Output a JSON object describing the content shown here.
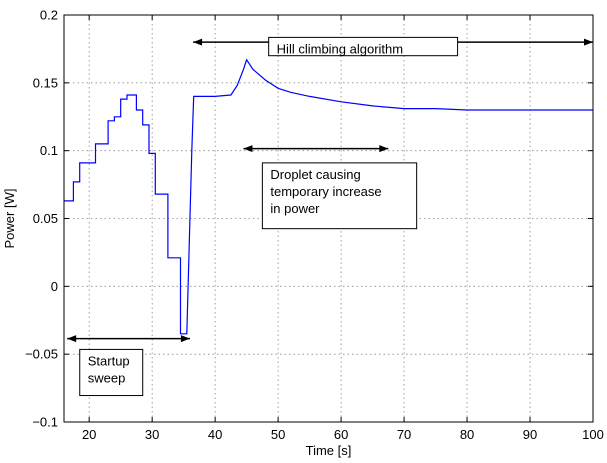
{
  "chart_data": {
    "type": "line",
    "xlabel": "Time [s]",
    "ylabel": "Power [W]",
    "xlim": [
      16,
      100
    ],
    "ylim": [
      -0.1,
      0.2
    ],
    "xticks": [
      20,
      30,
      40,
      50,
      60,
      70,
      80,
      90,
      100
    ],
    "yticks": [
      -0.1,
      -0.05,
      0,
      0.05,
      0.1,
      0.15,
      0.2
    ],
    "ytick_labels": [
      "−0.1",
      "−0.05",
      "0",
      "0.05",
      "0.1",
      "0.15",
      "0.2"
    ],
    "grid": true,
    "series_color": "#0000ff",
    "series": [
      {
        "x": [
          16,
          17.5,
          17.5,
          18.5,
          18.5,
          19.5,
          19.5,
          21,
          21,
          22,
          22,
          23,
          23,
          24,
          24,
          25,
          25,
          26,
          26,
          27.5,
          27.5,
          28.5,
          28.5,
          29.5,
          29.5,
          30.5,
          30.5,
          31.5,
          31.5,
          32.5,
          32.5,
          33.5,
          33.5,
          34.5,
          34.5,
          35.5,
          36.3,
          36.6,
          40,
          42.5,
          43.5,
          44.5,
          45,
          46,
          48,
          50,
          52,
          55,
          60,
          65,
          70,
          75,
          80,
          85,
          90,
          95,
          100
        ],
        "y": [
          0.063,
          0.063,
          0.077,
          0.077,
          0.091,
          0.091,
          0.091,
          0.091,
          0.105,
          0.105,
          0.105,
          0.105,
          0.122,
          0.122,
          0.125,
          0.125,
          0.138,
          0.138,
          0.141,
          0.141,
          0.13,
          0.13,
          0.119,
          0.119,
          0.098,
          0.098,
          0.068,
          0.068,
          0.068,
          0.068,
          0.021,
          0.021,
          0.021,
          0.021,
          -0.035,
          -0.035,
          0.1,
          0.14,
          0.14,
          0.141,
          0.148,
          0.16,
          0.167,
          0.16,
          0.152,
          0.146,
          0.143,
          0.14,
          0.136,
          0.133,
          0.131,
          0.131,
          0.13,
          0.13,
          0.13,
          0.13,
          0.13
        ]
      }
    ],
    "annotations": [
      {
        "lines": [
          "Hill climbing algorithm"
        ],
        "arrow_x": [
          36.5,
          100
        ],
        "arrow_y": 0.18,
        "box_anchor": [
          48.5,
          0.1835
        ],
        "box_size": [
          30,
          0.0135
        ]
      },
      {
        "lines": [
          "Droplet causing",
          "temporary increase",
          "in power"
        ],
        "arrow_x": [
          44.5,
          67.5
        ],
        "arrow_y": 0.1015,
        "box_anchor": [
          47.5,
          0.091
        ],
        "box_size": [
          24.5,
          0.0485
        ]
      },
      {
        "lines": [
          "Startup",
          "sweep"
        ],
        "arrow_x": [
          16.5,
          36
        ],
        "arrow_y": -0.0385,
        "box_anchor": [
          18.5,
          -0.0465
        ],
        "box_size": [
          10,
          0.034
        ]
      }
    ]
  }
}
